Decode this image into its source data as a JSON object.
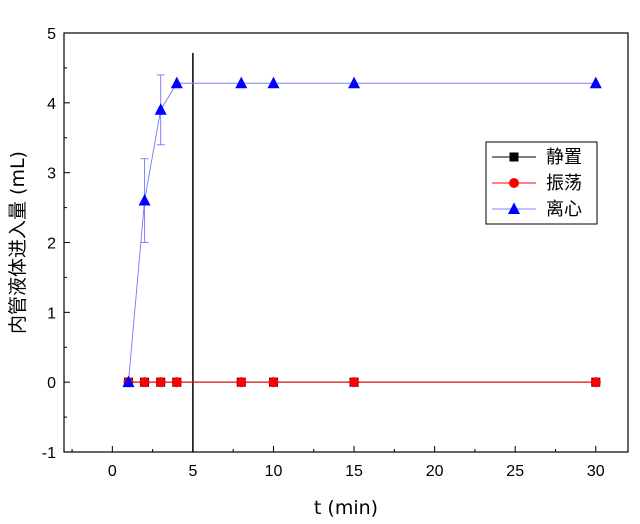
{
  "chart_data": {
    "type": "line",
    "xlabel": "t (min)",
    "ylabel": "内管液体进入量 (mL)",
    "xlim": [
      -3,
      32
    ],
    "ylim": [
      -1,
      5
    ],
    "xticks": [
      0,
      5,
      10,
      15,
      20,
      25,
      30
    ],
    "yticks": [
      -1,
      0,
      1,
      2,
      3,
      4,
      5
    ],
    "vertical_reference_line": {
      "x": 5
    },
    "grid": false,
    "legend_position": "right",
    "series": [
      {
        "name": "静置",
        "marker": "square",
        "color": "#000000",
        "line_color": "#000000",
        "x": [
          1,
          2,
          3,
          4,
          8,
          10,
          15,
          30
        ],
        "y": [
          0,
          0,
          0,
          0,
          0,
          0,
          0,
          0
        ]
      },
      {
        "name": "振荡",
        "marker": "circle",
        "color": "#ff0000",
        "line_color": "#ff0000",
        "x": [
          1,
          2,
          3,
          4,
          8,
          10,
          15,
          30
        ],
        "y": [
          0,
          0,
          0,
          0,
          0,
          0,
          0,
          0
        ]
      },
      {
        "name": "离心",
        "marker": "triangle",
        "color": "#0000ff",
        "line_color": "#8080ff",
        "x": [
          1,
          2,
          3,
          4,
          8,
          10,
          15,
          30
        ],
        "y": [
          0,
          2.6,
          3.9,
          4.28,
          4.28,
          4.28,
          4.28,
          4.28
        ],
        "error": [
          0,
          0.6,
          0.5,
          0,
          0,
          0,
          0,
          0
        ]
      }
    ]
  }
}
